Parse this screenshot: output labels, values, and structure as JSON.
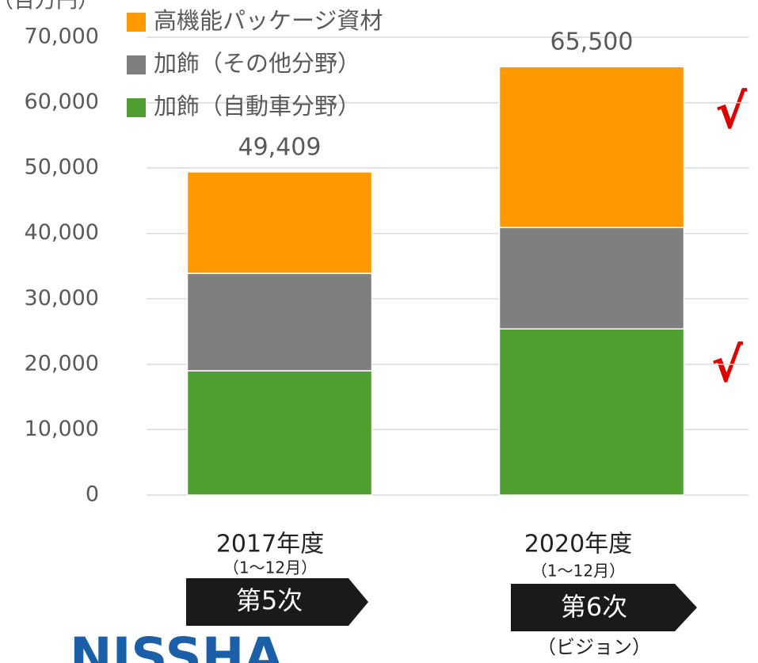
{
  "chart_data": {
    "type": "stacked_bar",
    "y_axis_label": "（百万円）",
    "categories": [
      "2017年度",
      "2020年度"
    ],
    "category_notes": [
      "（1～12月）",
      "（1～12月）"
    ],
    "phases": [
      "第5次",
      "第6次"
    ],
    "vision_note": "（ビジョン）",
    "series": [
      {
        "name": "加飾（自動車分野）",
        "color": "#4e9f2f",
        "values": [
          19000,
          25400
        ]
      },
      {
        "name": "加飾（その他分野）",
        "color": "#7f7f7f",
        "values": [
          14900,
          15500
        ]
      },
      {
        "name": "高機能パッケージ資材",
        "color": "#ff9900",
        "values": [
          15509,
          24600
        ]
      }
    ],
    "totals": [
      49409,
      65500
    ],
    "total_labels": [
      "49,409",
      "65,500"
    ],
    "ylim": [
      0,
      70000
    ],
    "yticks": [
      {
        "value": 0,
        "label": "0"
      },
      {
        "value": 10000,
        "label": "10,000"
      },
      {
        "value": 20000,
        "label": "20,000"
      },
      {
        "value": 30000,
        "label": "30,000"
      },
      {
        "value": 40000,
        "label": "40,000"
      },
      {
        "value": 50000,
        "label": "50,000"
      },
      {
        "value": 60000,
        "label": "60,000"
      },
      {
        "value": 70000,
        "label": "70,000"
      }
    ],
    "grid": true,
    "check_marks": [
      "√",
      "√"
    ],
    "logo": "NISSHA"
  }
}
